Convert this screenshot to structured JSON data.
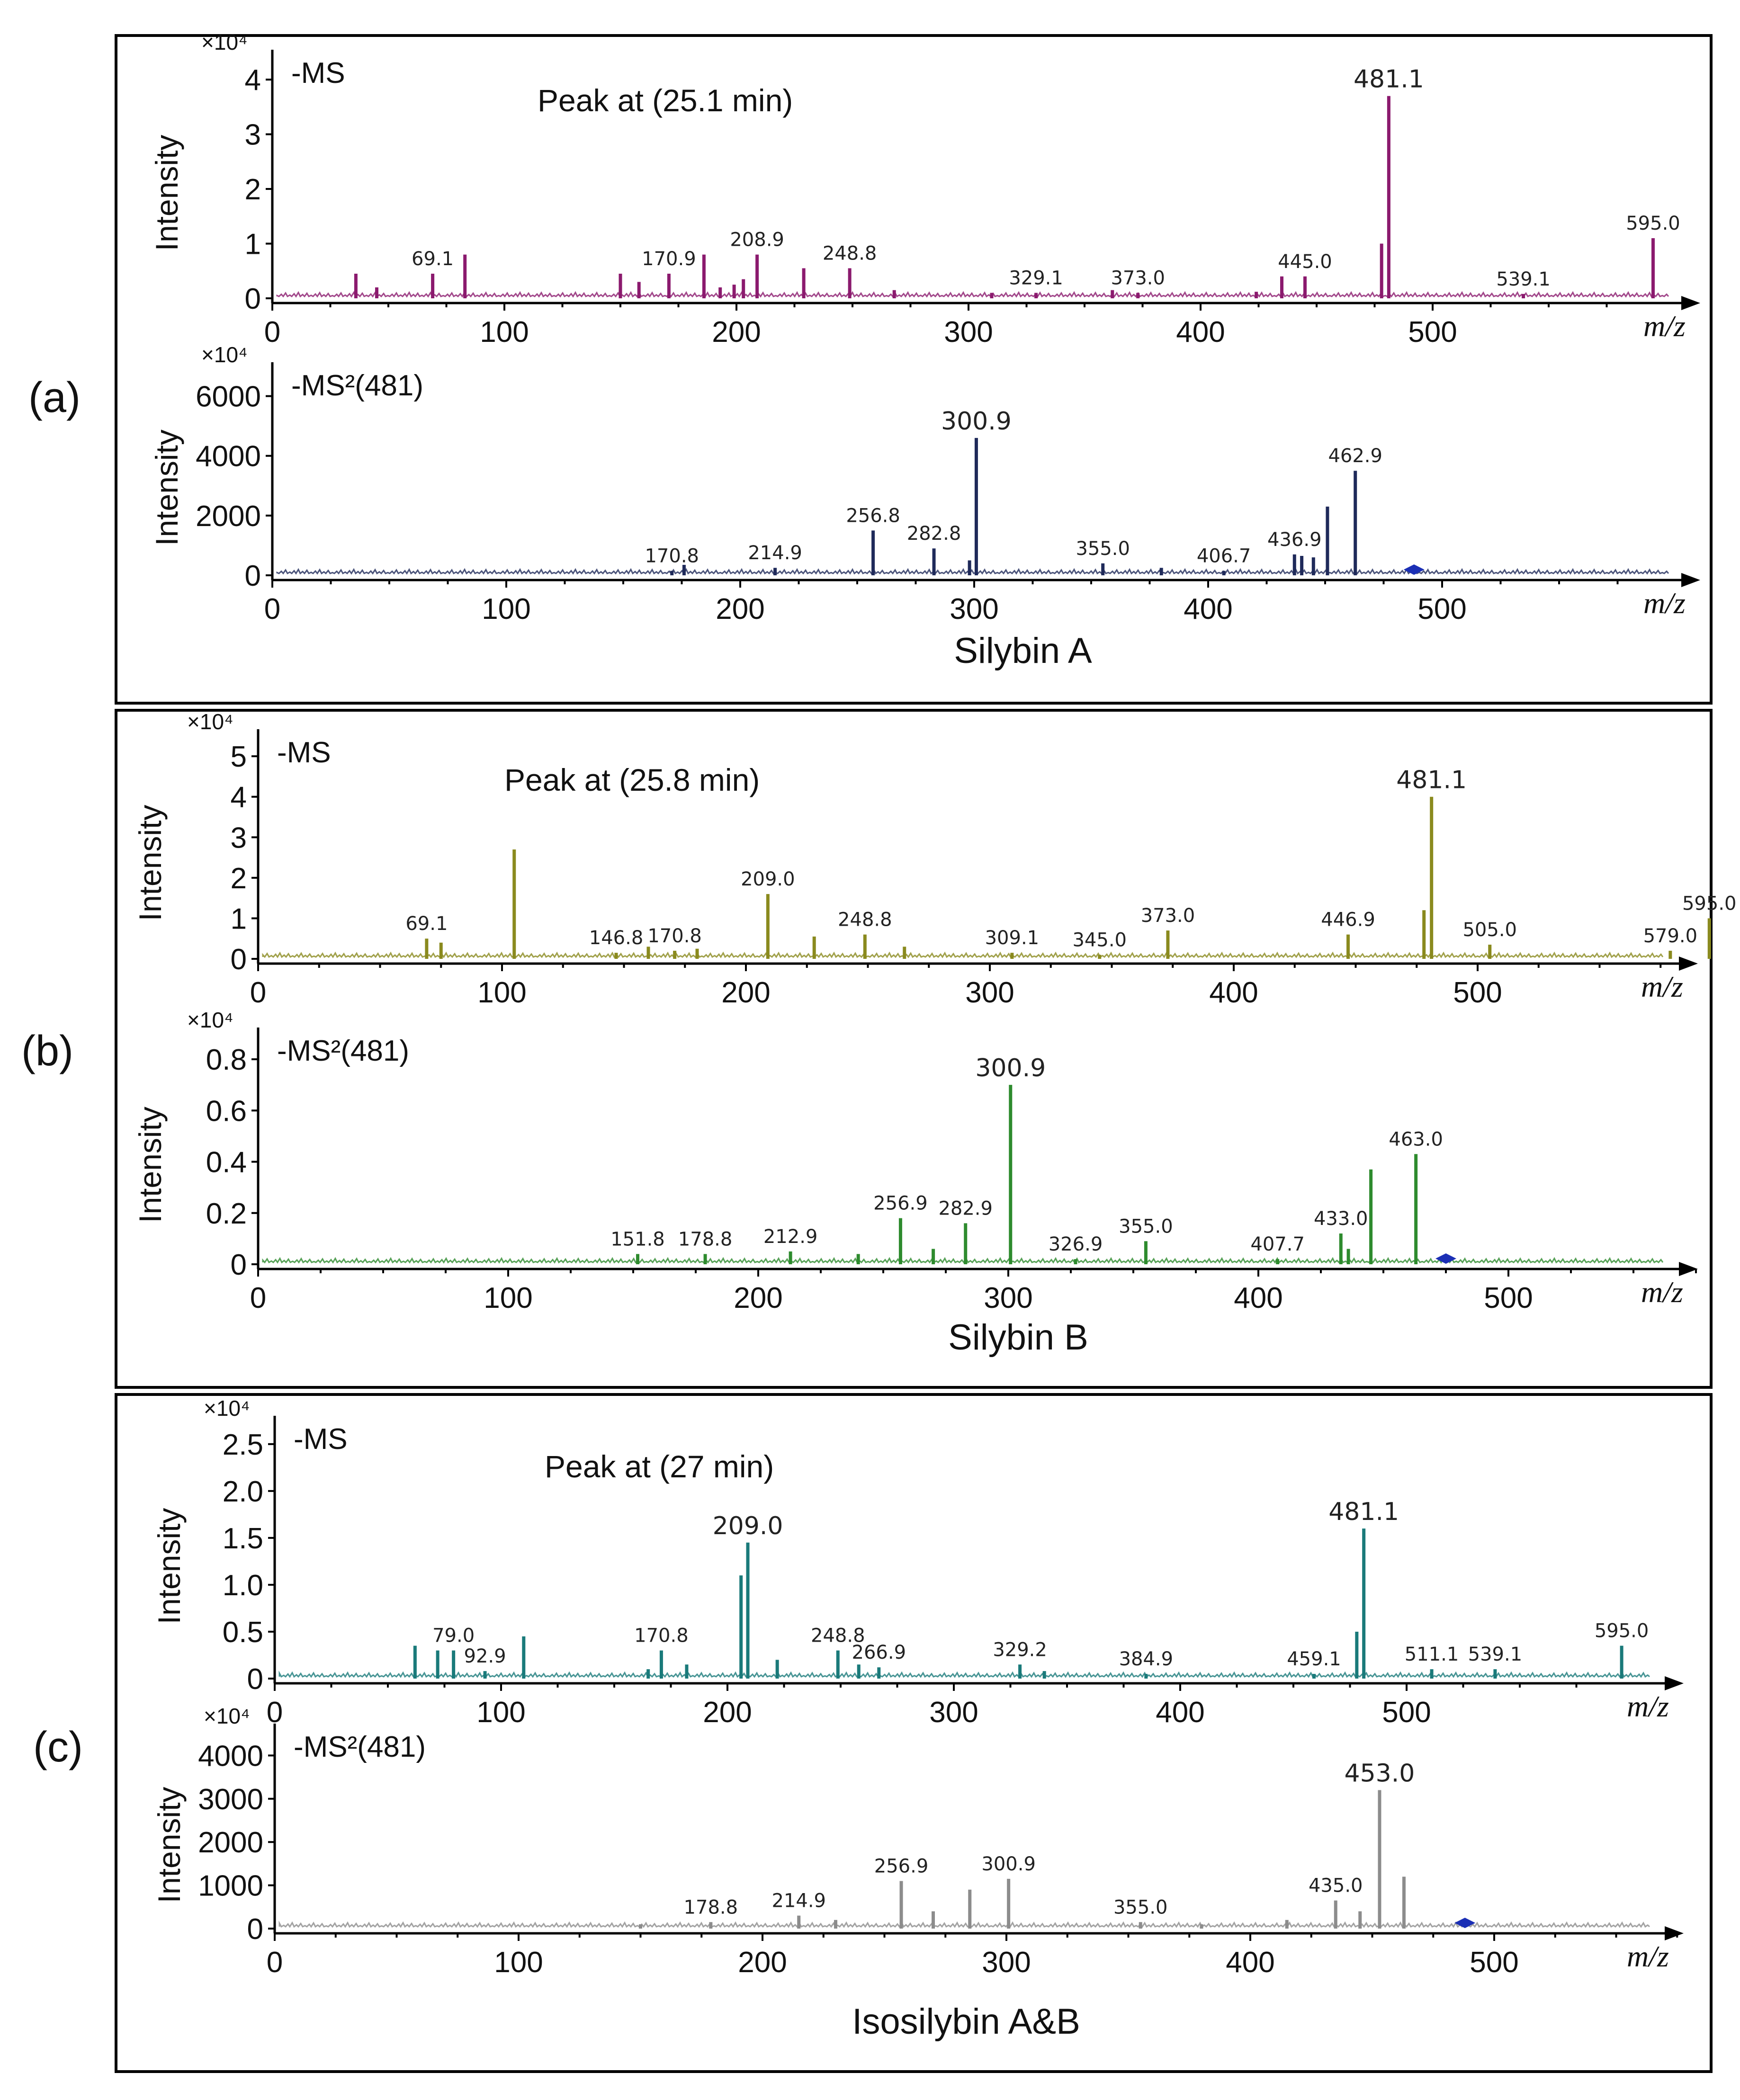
{
  "figure": {
    "panels": [
      {
        "letter": "(a)",
        "compound": "Silybin A",
        "plots": [
          {
            "scan": "-MS",
            "exponent": "×10⁴",
            "title": "Peak at (25.1 min)",
            "ylabel": "Intensity",
            "xlabel": "m/z",
            "color": "#8b1a6e",
            "xlim": [
              0,
              600
            ],
            "ylim": [
              0,
              4.2
            ],
            "xticks": [
              "0",
              "100",
              "200",
              "300",
              "400",
              "500"
            ],
            "yticks": [
              {
                "v": 0,
                "t": "0"
              },
              {
                "v": 1,
                "t": "1"
              },
              {
                "v": 2,
                "t": "2"
              },
              {
                "v": 3,
                "t": "3"
              },
              {
                "v": 4,
                "t": "4"
              }
            ]
          },
          {
            "scan": "-MS²(481)",
            "exponent": "×10⁴",
            "title": "",
            "ylabel": "Intensity",
            "xlabel": "m/z",
            "color": "#1f2a5a",
            "xlim": [
              0,
              600
            ],
            "ylim": [
              0,
              6500
            ],
            "xticks": [
              "0",
              "100",
              "200",
              "300",
              "400",
              "500"
            ],
            "yticks": [
              {
                "v": 0,
                "t": "0"
              },
              {
                "v": 2000,
                "t": "2000"
              },
              {
                "v": 4000,
                "t": "4000"
              },
              {
                "v": 6000,
                "t": "6000"
              }
            ]
          }
        ]
      },
      {
        "letter": "(b)",
        "compound": "Silybin B",
        "plots": [
          {
            "scan": "-MS",
            "exponent": "×10⁴",
            "title": "Peak at (25.8 min)",
            "ylabel": "Intensity",
            "xlabel": "m/z",
            "color": "#8a8a1e",
            "xlim": [
              0,
              600
            ],
            "ylim": [
              0,
              5.2
            ],
            "xticks": [
              "0",
              "100",
              "200",
              "300",
              "400",
              "500"
            ],
            "yticks": [
              {
                "v": 0,
                "t": "0"
              },
              {
                "v": 1,
                "t": "1"
              },
              {
                "v": 2,
                "t": "2"
              },
              {
                "v": 3,
                "t": "3"
              },
              {
                "v": 4,
                "t": "4"
              },
              {
                "v": 5,
                "t": "5"
              }
            ]
          },
          {
            "scan": "-MS²(481)",
            "exponent": "×10⁴",
            "title": "",
            "ylabel": "Intensity",
            "xlabel": "m/z",
            "color": "#2e8b2e",
            "xlim": [
              0,
              600
            ],
            "ylim": [
              0,
              0.85
            ],
            "xticks": [
              "0",
              "100",
              "200",
              "300",
              "400",
              "500"
            ],
            "yticks": [
              {
                "v": 0,
                "t": "0"
              },
              {
                "v": 0.2,
                "t": "0.2"
              },
              {
                "v": 0.4,
                "t": "0.4"
              },
              {
                "v": 0.6,
                "t": "0.6"
              },
              {
                "v": 0.8,
                "t": "0.8"
              }
            ]
          }
        ]
      },
      {
        "letter": "(c)",
        "compound": "Isosilybin A&B",
        "plots": [
          {
            "scan": "-MS",
            "exponent": "×10⁴",
            "title": "Peak at (27 min)",
            "ylabel": "Intensity",
            "xlabel": "m/z",
            "color": "#1a7a7a",
            "xlim": [
              0,
              600
            ],
            "ylim": [
              0,
              2.6
            ],
            "xticks": [
              "0",
              "100",
              "200",
              "300",
              "400",
              "500"
            ],
            "yticks": [
              {
                "v": 0,
                "t": "0"
              },
              {
                "v": 0.5,
                "t": "0.5"
              },
              {
                "v": 1.0,
                "t": "1.0"
              },
              {
                "v": 1.5,
                "t": "1.5"
              },
              {
                "v": 2.0,
                "t": "2.0"
              },
              {
                "v": 2.5,
                "t": "2.5"
              }
            ]
          },
          {
            "scan": "-MS²(481)",
            "exponent": "×10⁴",
            "title": "",
            "ylabel": "Intensity",
            "xlabel": "m/z",
            "color": "#8c8c8c",
            "xlim": [
              0,
              600
            ],
            "ylim": [
              0,
              4300
            ],
            "xticks": [
              "0",
              "100",
              "200",
              "300",
              "400",
              "500"
            ],
            "yticks": [
              {
                "v": 0,
                "t": "0"
              },
              {
                "v": 1000,
                "t": "1000"
              },
              {
                "v": 2000,
                "t": "2000"
              },
              {
                "v": 3000,
                "t": "3000"
              },
              {
                "v": 4000,
                "t": "4000"
              }
            ]
          }
        ]
      }
    ]
  },
  "chart_data": [
    {
      "type": "bar",
      "panel": "(a)",
      "scan": "-MS",
      "title": "Peak at (25.1 min)",
      "xlabel": "m/z",
      "ylabel": "Intensity",
      "y_multiplier": "×10⁴",
      "xlim": [
        0,
        600
      ],
      "ylim": [
        0,
        4.2
      ],
      "grid": false,
      "peaks": [
        {
          "mz": 36,
          "y": 0.45
        },
        {
          "mz": 45,
          "y": 0.2
        },
        {
          "mz": 69.1,
          "y": 0.45,
          "label": "69.1"
        },
        {
          "mz": 83,
          "y": 0.8
        },
        {
          "mz": 150,
          "y": 0.45
        },
        {
          "mz": 158,
          "y": 0.3
        },
        {
          "mz": 170.9,
          "y": 0.45,
          "label": "170.9"
        },
        {
          "mz": 186,
          "y": 0.8
        },
        {
          "mz": 193,
          "y": 0.2
        },
        {
          "mz": 199,
          "y": 0.25
        },
        {
          "mz": 203,
          "y": 0.35
        },
        {
          "mz": 208.9,
          "y": 0.8,
          "label": "208.9"
        },
        {
          "mz": 229,
          "y": 0.55
        },
        {
          "mz": 248.8,
          "y": 0.55,
          "label": "248.8"
        },
        {
          "mz": 268,
          "y": 0.15
        },
        {
          "mz": 310,
          "y": 0.1
        },
        {
          "mz": 329.1,
          "y": 0.1,
          "label": "329.1"
        },
        {
          "mz": 362,
          "y": 0.15
        },
        {
          "mz": 373.0,
          "y": 0.1,
          "label": "373.0"
        },
        {
          "mz": 424,
          "y": 0.12
        },
        {
          "mz": 435,
          "y": 0.4
        },
        {
          "mz": 445.0,
          "y": 0.4,
          "label": "445.0"
        },
        {
          "mz": 478,
          "y": 1.0
        },
        {
          "mz": 481.1,
          "y": 3.7,
          "label": "481.1"
        },
        {
          "mz": 539.1,
          "y": 0.08,
          "label": "539.1"
        },
        {
          "mz": 595.0,
          "y": 1.1,
          "label": "595.0"
        }
      ]
    },
    {
      "type": "bar",
      "panel": "(a)",
      "scan": "-MS²(481)",
      "xlabel": "m/z",
      "ylabel": "Intensity",
      "y_multiplier": "×10⁴",
      "xlim": [
        0,
        600
      ],
      "ylim": [
        0,
        6500
      ],
      "grid": false,
      "peaks": [
        {
          "mz": 170.8,
          "y": 150,
          "label": "170.8"
        },
        {
          "mz": 176,
          "y": 350
        },
        {
          "mz": 214.9,
          "y": 250,
          "label": "214.9"
        },
        {
          "mz": 256.8,
          "y": 1500,
          "label": "256.8"
        },
        {
          "mz": 282.8,
          "y": 900,
          "label": "282.8"
        },
        {
          "mz": 298,
          "y": 500
        },
        {
          "mz": 300.9,
          "y": 4600,
          "label": "300.9"
        },
        {
          "mz": 355.0,
          "y": 400,
          "label": "355.0"
        },
        {
          "mz": 380,
          "y": 250
        },
        {
          "mz": 406.7,
          "y": 150,
          "label": "406.7"
        },
        {
          "mz": 436.9,
          "y": 700,
          "label": "436.9"
        },
        {
          "mz": 440,
          "y": 650
        },
        {
          "mz": 445,
          "y": 600
        },
        {
          "mz": 451,
          "y": 2300
        },
        {
          "mz": 462.9,
          "y": 3500,
          "label": "462.9"
        }
      ]
    },
    {
      "type": "bar",
      "panel": "(b)",
      "scan": "-MS",
      "title": "Peak at (25.8 min)",
      "xlabel": "m/z",
      "ylabel": "Intensity",
      "y_multiplier": "×10⁴",
      "xlim": [
        0,
        600
      ],
      "ylim": [
        0,
        5.2
      ],
      "grid": false,
      "peaks": [
        {
          "mz": 69.1,
          "y": 0.5,
          "label": "69.1"
        },
        {
          "mz": 75,
          "y": 0.4
        },
        {
          "mz": 105,
          "y": 2.7
        },
        {
          "mz": 146.8,
          "y": 0.15,
          "label": "146.8"
        },
        {
          "mz": 160,
          "y": 0.3
        },
        {
          "mz": 170.8,
          "y": 0.2,
          "label": "170.8"
        },
        {
          "mz": 180,
          "y": 0.25
        },
        {
          "mz": 209.0,
          "y": 1.6,
          "label": "209.0"
        },
        {
          "mz": 228,
          "y": 0.55
        },
        {
          "mz": 248.8,
          "y": 0.6,
          "label": "248.8"
        },
        {
          "mz": 265,
          "y": 0.3
        },
        {
          "mz": 309.1,
          "y": 0.15,
          "label": "309.1"
        },
        {
          "mz": 345.0,
          "y": 0.1,
          "label": "345.0"
        },
        {
          "mz": 373.0,
          "y": 0.7,
          "label": "373.0"
        },
        {
          "mz": 446.9,
          "y": 0.6,
          "label": "446.9"
        },
        {
          "mz": 478,
          "y": 1.2
        },
        {
          "mz": 481.1,
          "y": 4.0,
          "label": "481.1"
        },
        {
          "mz": 505.0,
          "y": 0.35,
          "label": "505.0"
        },
        {
          "mz": 579.0,
          "y": 0.2,
          "label": "579.0"
        },
        {
          "mz": 595.0,
          "y": 1.0,
          "label": "595.0"
        }
      ]
    },
    {
      "type": "bar",
      "panel": "(b)",
      "scan": "-MS²(481)",
      "xlabel": "m/z",
      "ylabel": "Intensity",
      "y_multiplier": "×10⁴",
      "xlim": [
        0,
        600
      ],
      "ylim": [
        0,
        0.85
      ],
      "grid": false,
      "peaks": [
        {
          "mz": 151.8,
          "y": 0.04,
          "label": "151.8"
        },
        {
          "mz": 178.8,
          "y": 0.04,
          "label": "178.8"
        },
        {
          "mz": 212.9,
          "y": 0.05,
          "label": "212.9"
        },
        {
          "mz": 240,
          "y": 0.04
        },
        {
          "mz": 256.9,
          "y": 0.18,
          "label": "256.9"
        },
        {
          "mz": 270,
          "y": 0.06
        },
        {
          "mz": 282.9,
          "y": 0.16,
          "label": "282.9"
        },
        {
          "mz": 300.9,
          "y": 0.7,
          "label": "300.9"
        },
        {
          "mz": 326.9,
          "y": 0.02,
          "label": "326.9"
        },
        {
          "mz": 355.0,
          "y": 0.09,
          "label": "355.0"
        },
        {
          "mz": 407.7,
          "y": 0.02,
          "label": "407.7"
        },
        {
          "mz": 433.0,
          "y": 0.12,
          "label": "433.0"
        },
        {
          "mz": 436,
          "y": 0.06
        },
        {
          "mz": 445,
          "y": 0.37
        },
        {
          "mz": 463.0,
          "y": 0.43,
          "label": "463.0"
        }
      ]
    },
    {
      "type": "bar",
      "panel": "(c)",
      "scan": "-MS",
      "title": "Peak at (27 min)",
      "xlabel": "m/z",
      "ylabel": "Intensity",
      "y_multiplier": "×10⁴",
      "xlim": [
        0,
        600
      ],
      "ylim": [
        0,
        2.6
      ],
      "grid": false,
      "peaks": [
        {
          "mz": 62,
          "y": 0.35
        },
        {
          "mz": 72,
          "y": 0.3
        },
        {
          "mz": 79.0,
          "y": 0.3,
          "label": "79.0"
        },
        {
          "mz": 92.9,
          "y": 0.08,
          "label": "92.9"
        },
        {
          "mz": 110,
          "y": 0.45
        },
        {
          "mz": 165,
          "y": 0.1
        },
        {
          "mz": 170.8,
          "y": 0.3,
          "label": "170.8"
        },
        {
          "mz": 182,
          "y": 0.15
        },
        {
          "mz": 206,
          "y": 1.1
        },
        {
          "mz": 209.0,
          "y": 1.45,
          "label": "209.0"
        },
        {
          "mz": 222,
          "y": 0.2
        },
        {
          "mz": 248.8,
          "y": 0.3,
          "label": "248.8"
        },
        {
          "mz": 258,
          "y": 0.15
        },
        {
          "mz": 266.9,
          "y": 0.12,
          "label": "266.9"
        },
        {
          "mz": 329.2,
          "y": 0.15,
          "label": "329.2"
        },
        {
          "mz": 340,
          "y": 0.08
        },
        {
          "mz": 384.9,
          "y": 0.05,
          "label": "384.9"
        },
        {
          "mz": 459.1,
          "y": 0.05,
          "label": "459.1"
        },
        {
          "mz": 478,
          "y": 0.5
        },
        {
          "mz": 481.1,
          "y": 1.6,
          "label": "481.1"
        },
        {
          "mz": 511.1,
          "y": 0.1,
          "label": "511.1"
        },
        {
          "mz": 539.1,
          "y": 0.1,
          "label": "539.1"
        },
        {
          "mz": 595.0,
          "y": 0.35,
          "label": "595.0"
        }
      ]
    },
    {
      "type": "bar",
      "panel": "(c)",
      "scan": "-MS²(481)",
      "xlabel": "m/z",
      "ylabel": "Intensity",
      "y_multiplier": "×10⁴",
      "xlim": [
        0,
        600
      ],
      "ylim": [
        0,
        4300
      ],
      "grid": false,
      "peaks": [
        {
          "mz": 150,
          "y": 100
        },
        {
          "mz": 178.8,
          "y": 150,
          "label": "178.8"
        },
        {
          "mz": 214.9,
          "y": 300,
          "label": "214.9"
        },
        {
          "mz": 230,
          "y": 200
        },
        {
          "mz": 256.9,
          "y": 1100,
          "label": "256.9"
        },
        {
          "mz": 270,
          "y": 400
        },
        {
          "mz": 285,
          "y": 900
        },
        {
          "mz": 300.9,
          "y": 1150,
          "label": "300.9"
        },
        {
          "mz": 355.0,
          "y": 150,
          "label": "355.0"
        },
        {
          "mz": 380,
          "y": 100
        },
        {
          "mz": 415,
          "y": 200
        },
        {
          "mz": 435.0,
          "y": 650,
          "label": "435.0"
        },
        {
          "mz": 445,
          "y": 400
        },
        {
          "mz": 453.0,
          "y": 3200,
          "label": "453.0"
        },
        {
          "mz": 463,
          "y": 1200
        }
      ]
    }
  ]
}
